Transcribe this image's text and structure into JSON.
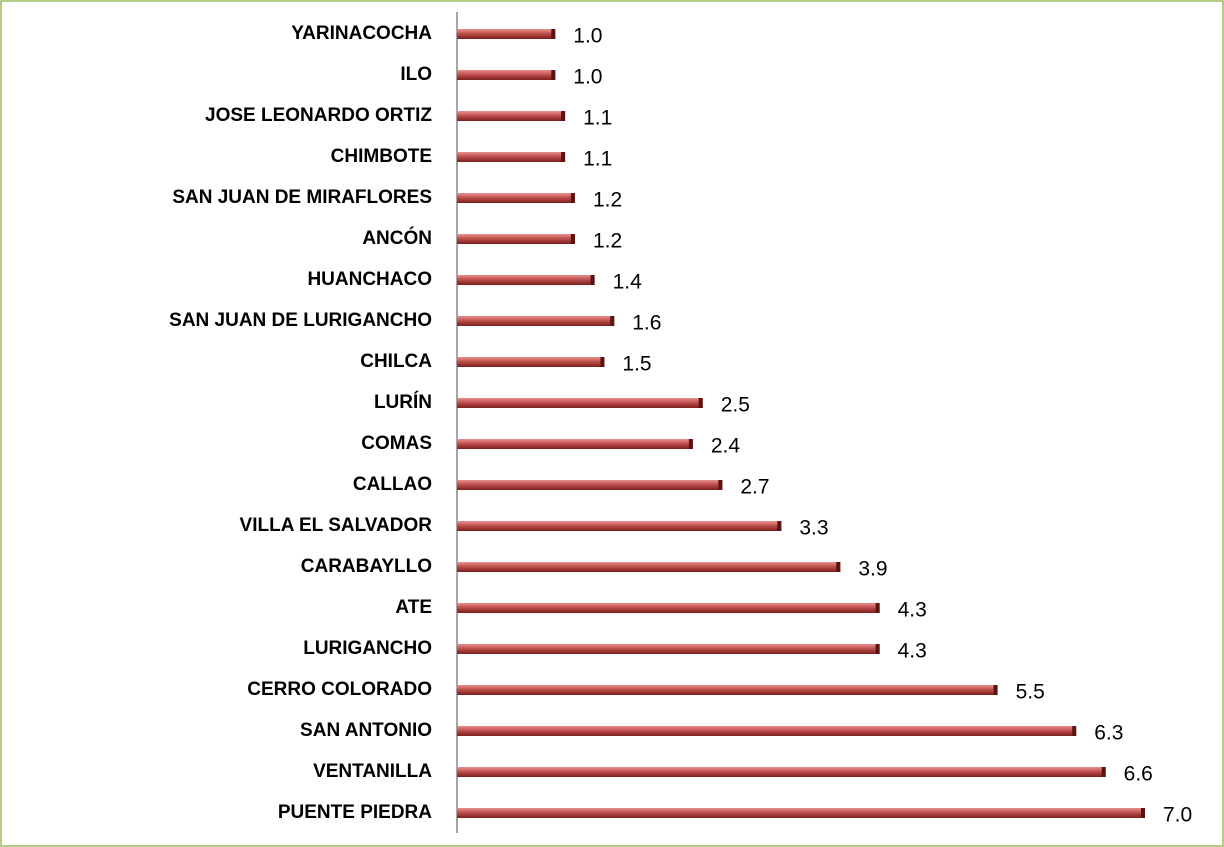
{
  "chart_data": {
    "type": "bar",
    "orientation": "horizontal",
    "color": "#c0504d",
    "categories": [
      "YARINACOCHA",
      "ILO",
      "JOSE LEONARDO ORTIZ",
      "CHIMBOTE",
      "SAN JUAN DE MIRAFLORES",
      "ANCÓN",
      "HUANCHACO",
      "SAN JUAN DE LURIGANCHO",
      "CHILCA",
      "LURÍN",
      "COMAS",
      "CALLAO",
      "VILLA EL SALVADOR",
      "CARABAYLLO",
      "ATE",
      "LURIGANCHO",
      "CERRO COLORADO",
      "SAN ANTONIO",
      "VENTANILLA",
      "PUENTE PIEDRA"
    ],
    "values": [
      1.0,
      1.0,
      1.1,
      1.1,
      1.2,
      1.2,
      1.4,
      1.6,
      1.5,
      2.5,
      2.4,
      2.7,
      3.3,
      3.9,
      4.3,
      4.3,
      5.5,
      6.3,
      6.6,
      7.0
    ],
    "value_labels": [
      "1.0",
      "1.0",
      "1.1",
      "1.1",
      "1.2",
      "1.2",
      "1.4",
      "1.6",
      "1.5",
      "2.5",
      "2.4",
      "2.7",
      "3.3",
      "3.9",
      "4.3",
      "4.3",
      "5.5",
      "6.3",
      "6.6",
      "7.0"
    ]
  }
}
